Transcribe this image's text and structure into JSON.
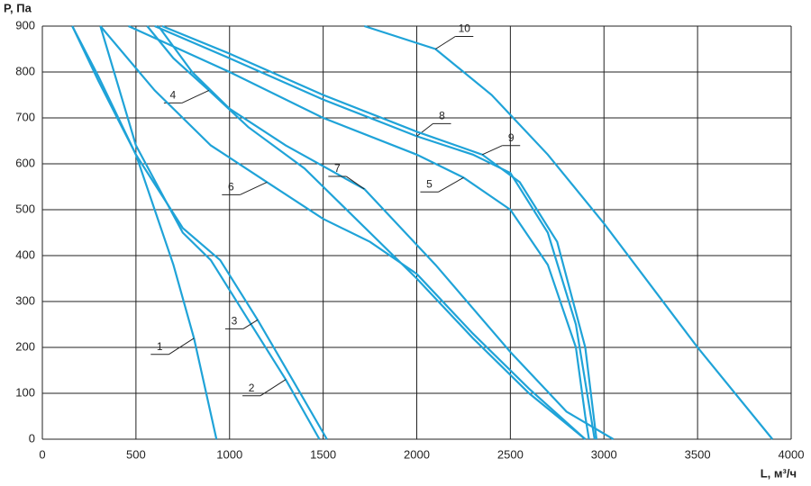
{
  "chart_data": {
    "type": "line",
    "y_label": "P, Па",
    "x_label": "L, м³/ч",
    "xlim": [
      0,
      4000
    ],
    "ylim": [
      0,
      900
    ],
    "xticks": [
      0,
      500,
      1000,
      1500,
      2000,
      2500,
      3000,
      3500,
      4000
    ],
    "yticks": [
      0,
      100,
      200,
      300,
      400,
      500,
      600,
      700,
      800,
      900
    ],
    "grid": true,
    "series": [
      {
        "name": "1",
        "color": "#1fa3d8",
        "x": [
          160,
          300,
          500,
          700,
          810,
          930
        ],
        "values": [
          900,
          780,
          620,
          380,
          220,
          0
        ]
      },
      {
        "name": "2",
        "color": "#1fa3d8",
        "x": [
          310,
          500,
          750,
          900,
          1100,
          1300,
          1480
        ],
        "values": [
          900,
          640,
          450,
          390,
          260,
          130,
          0
        ]
      },
      {
        "name": "3",
        "color": "#1fa3d8",
        "x": [
          160,
          300,
          500,
          750,
          950,
          1150,
          1350,
          1520
        ],
        "values": [
          900,
          790,
          620,
          460,
          390,
          260,
          120,
          0
        ]
      },
      {
        "name": "4",
        "color": "#1fa3d8",
        "x": [
          560,
          700,
          890,
          1100,
          1400,
          1700,
          2000,
          2300,
          2600,
          2900
        ],
        "values": [
          900,
          830,
          760,
          680,
          590,
          470,
          350,
          220,
          100,
          0
        ]
      },
      {
        "name": "5",
        "color": "#1fa3d8",
        "x": [
          460,
          1000,
          1500,
          2000,
          2250,
          2500,
          2700,
          2850,
          2900,
          2920
        ],
        "values": [
          900,
          800,
          700,
          620,
          570,
          500,
          380,
          200,
          50,
          0
        ]
      },
      {
        "name": "6",
        "color": "#1fa3d8",
        "x": [
          310,
          600,
          900,
          1200,
          1500,
          1750,
          2000,
          2300,
          2600,
          2900
        ],
        "values": [
          900,
          760,
          640,
          560,
          480,
          430,
          360,
          230,
          110,
          0
        ]
      },
      {
        "name": "7",
        "color": "#1fa3d8",
        "x": [
          620,
          800,
          1000,
          1300,
          1720,
          2100,
          2500,
          2800,
          3050
        ],
        "values": [
          900,
          800,
          720,
          640,
          545,
          380,
          190,
          60,
          0
        ]
      },
      {
        "name": "8",
        "color": "#1fa3d8",
        "x": [
          600,
          1000,
          1500,
          2000,
          2300,
          2500,
          2700,
          2850,
          2930,
          2950
        ],
        "values": [
          900,
          830,
          740,
          660,
          620,
          580,
          450,
          250,
          50,
          0
        ]
      },
      {
        "name": "9",
        "color": "#1fa3d8",
        "x": [
          640,
          1000,
          1500,
          2000,
          2350,
          2550,
          2750,
          2900,
          2960
        ],
        "values": [
          900,
          840,
          750,
          670,
          620,
          560,
          430,
          200,
          0
        ]
      },
      {
        "name": "10",
        "color": "#1fa3d8",
        "x": [
          1720,
          2100,
          2400,
          2700,
          3000,
          3500,
          3900
        ],
        "values": [
          900,
          850,
          750,
          620,
          470,
          200,
          0
        ]
      }
    ]
  }
}
